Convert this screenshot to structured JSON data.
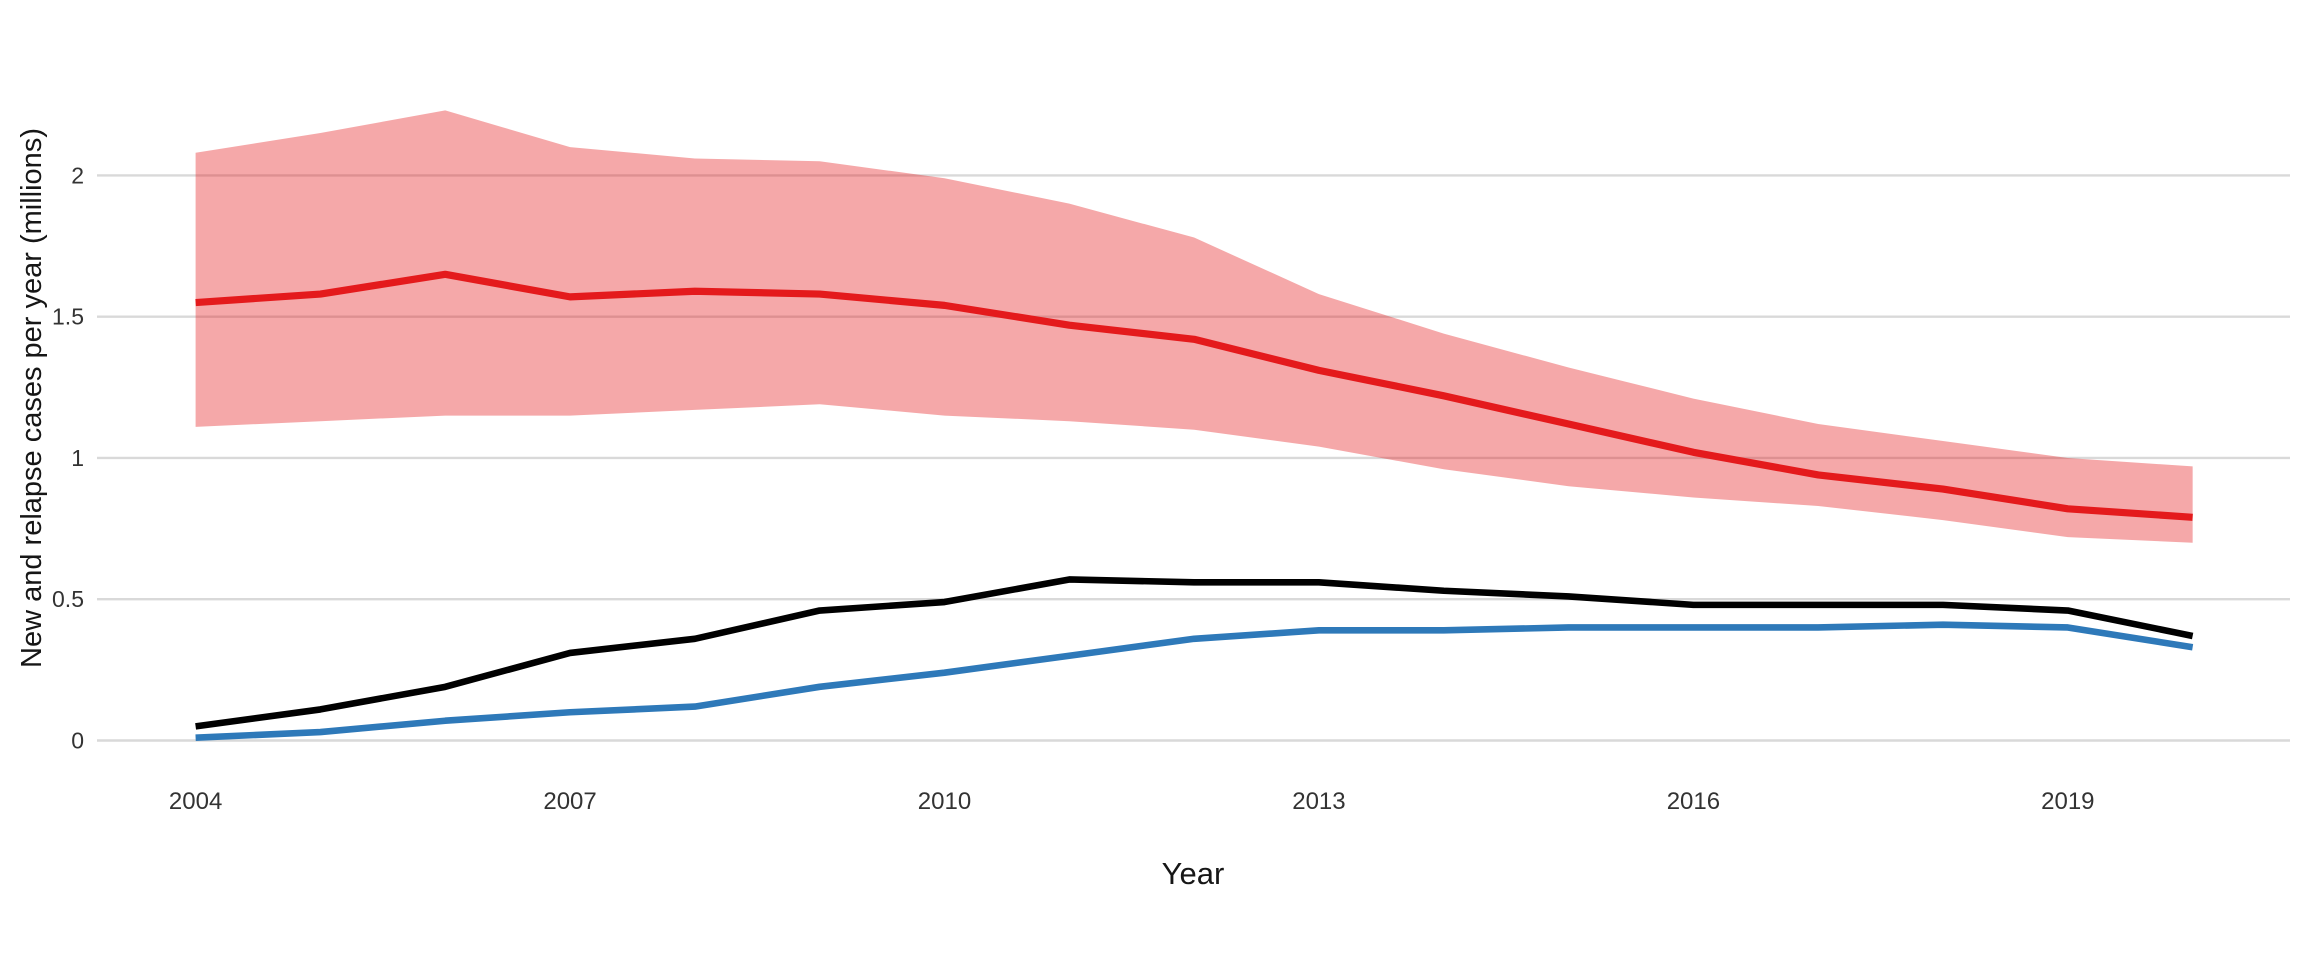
{
  "chart_data": {
    "type": "line",
    "title": "",
    "xlabel": "Year",
    "ylabel": "New and relapse cases per year (millions)",
    "legend": "none",
    "grid": "horizontal-major-only",
    "background": "#FFFFFF",
    "gridline_color": "#D9D9D9",
    "xlim": [
      2003.21,
      2020.78
    ],
    "ylim": [
      -0.115,
      2.373
    ],
    "xticks": {
      "values": [
        2004,
        2007,
        2010,
        2013,
        2016,
        2019
      ],
      "labels": [
        "2004",
        "2007",
        "2010",
        "2013",
        "2016",
        "2019"
      ]
    },
    "yticks": {
      "values": [
        0,
        0.5,
        1,
        1.5,
        2
      ],
      "labels": [
        "0",
        "0.5",
        "1",
        "1.5",
        "2"
      ]
    },
    "x": [
      2004,
      2005,
      2006,
      2007,
      2008,
      2009,
      2010,
      2011,
      2012,
      2013,
      2014,
      2015,
      2016,
      2017,
      2018,
      2019,
      2020
    ],
    "series": [
      {
        "name": "red-line-central-estimate",
        "type": "line-with-band",
        "color": "#E41A1C",
        "band_color": "rgba(228,26,28,0.38)",
        "values": [
          1.55,
          1.58,
          1.65,
          1.57,
          1.59,
          1.58,
          1.54,
          1.47,
          1.42,
          1.31,
          1.22,
          1.12,
          1.02,
          0.94,
          0.89,
          0.82,
          0.79
        ],
        "band_upper": [
          2.08,
          2.15,
          2.23,
          2.1,
          2.06,
          2.05,
          1.99,
          1.9,
          1.78,
          1.58,
          1.44,
          1.32,
          1.21,
          1.12,
          1.06,
          1.0,
          0.97
        ],
        "band_lower": [
          1.11,
          1.13,
          1.15,
          1.15,
          1.17,
          1.19,
          1.15,
          1.13,
          1.1,
          1.04,
          0.96,
          0.9,
          0.86,
          0.83,
          0.78,
          0.72,
          0.7
        ]
      },
      {
        "name": "black-line",
        "type": "line",
        "color": "#000000",
        "values": [
          0.05,
          0.11,
          0.19,
          0.31,
          0.36,
          0.46,
          0.49,
          0.57,
          0.56,
          0.56,
          0.53,
          0.51,
          0.48,
          0.48,
          0.48,
          0.46,
          0.37
        ]
      },
      {
        "name": "blue-line",
        "type": "line",
        "color": "#2E79B9",
        "values": [
          0.01,
          0.03,
          0.07,
          0.1,
          0.12,
          0.19,
          0.24,
          0.3,
          0.36,
          0.39,
          0.39,
          0.4,
          0.4,
          0.4,
          0.41,
          0.4,
          0.33
        ]
      }
    ]
  }
}
